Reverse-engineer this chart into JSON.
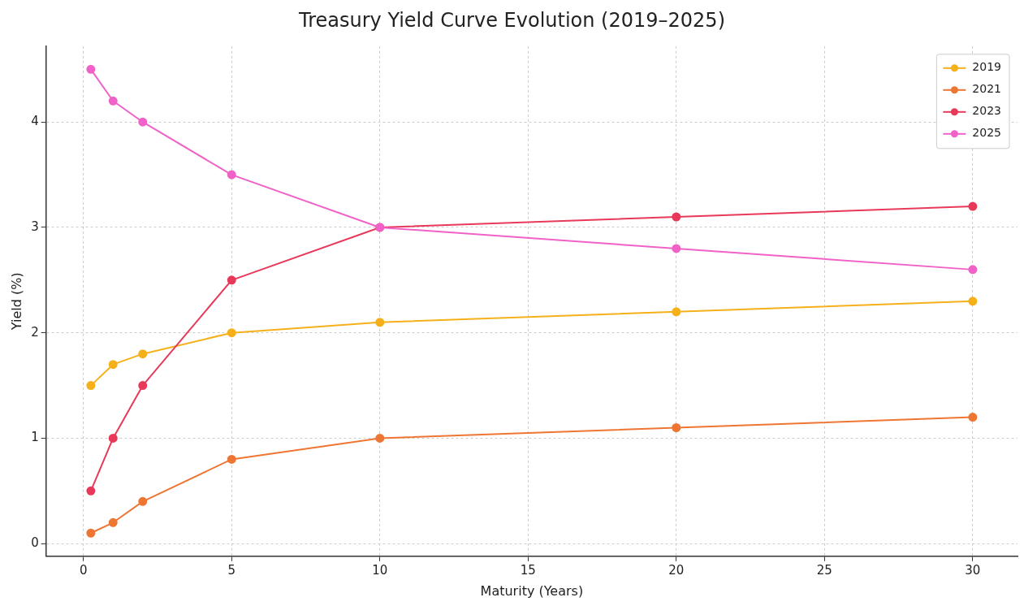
{
  "chart_data": {
    "type": "line",
    "title": "Treasury Yield Curve Evolution (2019–2025)",
    "xlabel": "Maturity (Years)",
    "ylabel": "Yield (%)",
    "x": [
      0.25,
      1,
      2,
      5,
      10,
      20,
      30
    ],
    "series": [
      {
        "name": "2019",
        "color": "#f5b01a",
        "values": [
          1.5,
          1.7,
          1.8,
          2.0,
          2.1,
          2.2,
          2.3
        ]
      },
      {
        "name": "2021",
        "color": "#ee7633",
        "values": [
          0.1,
          0.2,
          0.4,
          0.8,
          1.0,
          1.1,
          1.2
        ]
      },
      {
        "name": "2023",
        "color": "#e8395a",
        "values": [
          0.5,
          1.0,
          1.5,
          2.5,
          3.0,
          3.1,
          3.2
        ]
      },
      {
        "name": "2025",
        "color": "#f062c8",
        "values": [
          4.5,
          4.2,
          4.0,
          3.5,
          3.0,
          2.8,
          2.6
        ]
      }
    ],
    "xlim": [
      -1.26,
      31.51
    ],
    "xticks": [
      0,
      5,
      10,
      15,
      20,
      25,
      30
    ],
    "ylim": [
      -0.12,
      4.72
    ],
    "yticks": [
      0,
      1,
      2,
      3,
      4
    ],
    "grid": true,
    "legend": "top right",
    "marker": "circle",
    "line_style": "solid"
  }
}
